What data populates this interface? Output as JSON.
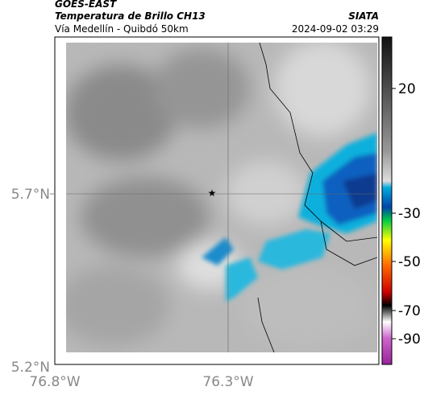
{
  "header": {
    "source": "GOES-EAST",
    "product": "Temperatura de Brillo CH13",
    "agency": "SIATA",
    "region": "Vía Medellín - Quibdó 50km",
    "timestamp": "2024-09-02 03:29"
  },
  "map": {
    "lat_labels": [
      "5.7°N",
      "5.2°N"
    ],
    "lon_labels": [
      "76.8°W",
      "76.3°W"
    ]
  },
  "colorbar": {
    "ticks": [
      "20",
      "-30",
      "-50",
      "-70",
      "-90"
    ]
  }
}
